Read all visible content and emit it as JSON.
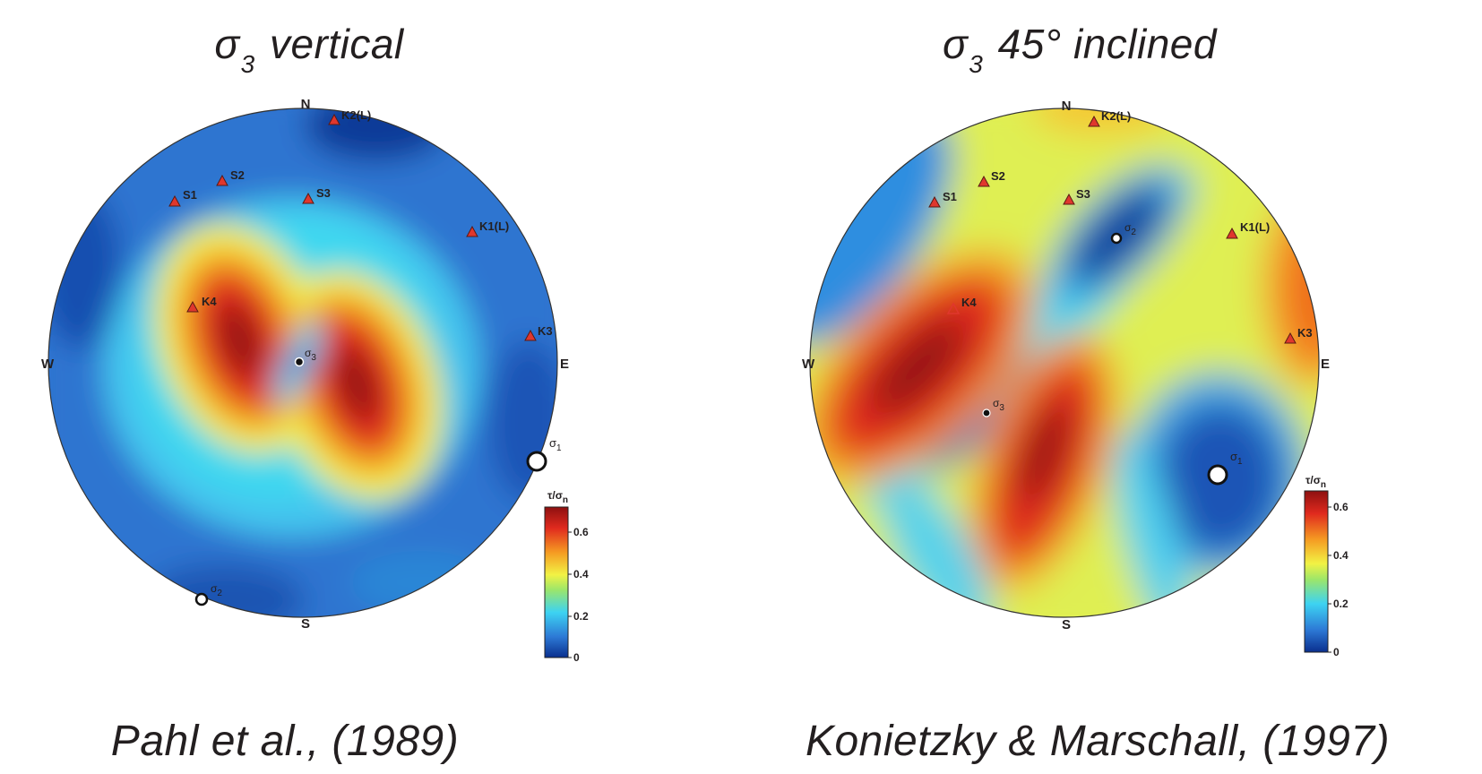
{
  "panels": [
    {
      "title_symbol": "σ",
      "title_sub": "3",
      "title_rest": "vertical",
      "caption": "Pahl et al., (1989)",
      "directions": {
        "n": "N",
        "s": "S",
        "e": "E",
        "w": "W"
      },
      "stations": [
        {
          "label": "K2(L)"
        },
        {
          "label": "S2"
        },
        {
          "label": "S1"
        },
        {
          "label": "S3"
        },
        {
          "label": "K1(L)"
        },
        {
          "label": "K4"
        },
        {
          "label": "K3"
        }
      ],
      "stress_axes": [
        {
          "label": "σ",
          "sub": "3"
        },
        {
          "label": "σ",
          "sub": "1"
        },
        {
          "label": "σ",
          "sub": "2"
        }
      ],
      "colorbar": {
        "title": "τ/σ",
        "title_sub": "n",
        "ticks": [
          "0.6",
          "0.4",
          "0.2",
          "0"
        ]
      }
    },
    {
      "title_symbol": "σ",
      "title_sub": "3",
      "title_rest": "45° inclined",
      "caption": "Konietzky & Marschall, (1997)",
      "directions": {
        "n": "N",
        "s": "S",
        "e": "E",
        "w": "W"
      },
      "stations": [
        {
          "label": "K2(L)"
        },
        {
          "label": "S2"
        },
        {
          "label": "S1"
        },
        {
          "label": "S3"
        },
        {
          "label": "K1(L)"
        },
        {
          "label": "K4"
        },
        {
          "label": "K3"
        }
      ],
      "stress_axes": [
        {
          "label": "σ",
          "sub": "2"
        },
        {
          "label": "σ",
          "sub": "3"
        },
        {
          "label": "σ",
          "sub": "1"
        }
      ],
      "colorbar": {
        "title": "τ/σ",
        "title_sub": "n",
        "ticks": [
          "0.6",
          "0.4",
          "0.2",
          "0"
        ]
      }
    }
  ],
  "colors": {
    "jet_dark_blue": "#0a2f8e",
    "jet_blue": "#2d7ad6",
    "jet_cyan": "#3dd3f2",
    "jet_yellow": "#f2f244",
    "jet_orange": "#f59a22",
    "jet_red": "#e02a1e",
    "jet_dark_red": "#8e1010",
    "station_marker": "#e0372d"
  }
}
